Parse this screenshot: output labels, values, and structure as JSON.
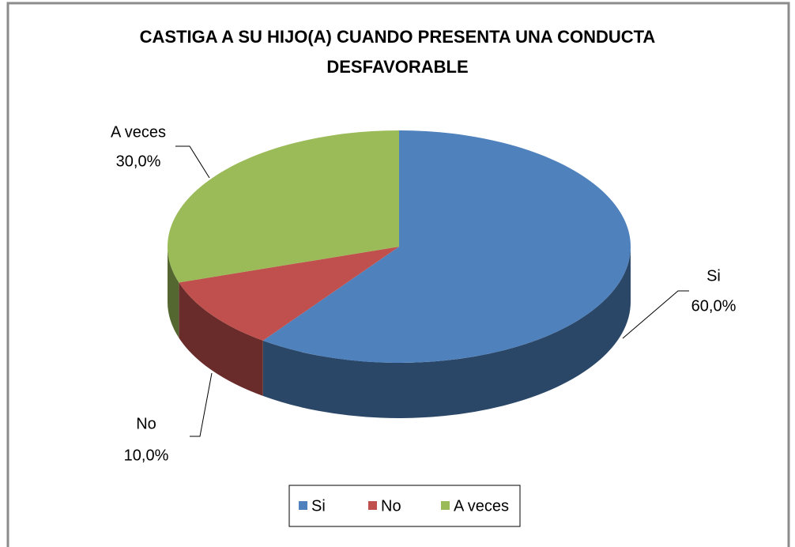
{
  "chart_data": {
    "type": "pie",
    "title": "CASTIGA A SU HIJO(A) CUANDO PRESENTA UNA CONDUCTA DESFAVORABLE",
    "categories": [
      "Si",
      "No",
      "A veces"
    ],
    "values": [
      60,
      10,
      30
    ],
    "value_labels": [
      "60,0%",
      "10,0%",
      "30,0%"
    ],
    "colors": [
      "#4f81bd",
      "#c0504d",
      "#9bbb59"
    ],
    "legend": "bottom"
  }
}
